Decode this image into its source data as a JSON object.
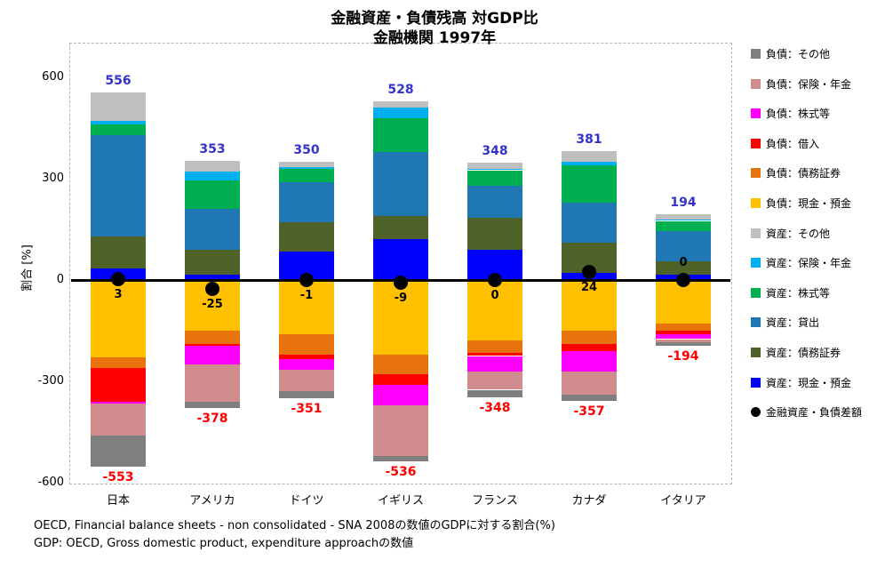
{
  "title": {
    "line1": "金融資産・負債残高 対GDP比",
    "line2": "金融機関 1997年"
  },
  "footer": {
    "line1": "OECD, Financial balance sheets -  non consolidated - SNA 2008の数値のGDPに対する割合(%)",
    "line2": "GDP: OECD, Gross domestic product, expenditure approachの数値"
  },
  "chart_data": {
    "type": "bar",
    "stacked": true,
    "title": "金融資産・負債残高 対GDP比 金融機関 1997年",
    "ylabel": "割合 [%]",
    "ylim": [
      -600,
      600
    ],
    "yticks": [
      600,
      300,
      0,
      -300,
      -600
    ],
    "grid": false,
    "legend_position": "right",
    "categories": [
      "日本",
      "アメリカ",
      "ドイツ",
      "イギリス",
      "フランス",
      "カナダ",
      "イタリア"
    ],
    "asset_total_labels": [
      556,
      353,
      350,
      528,
      348,
      381,
      194
    ],
    "liability_total_labels": [
      -553,
      -378,
      -351,
      -536,
      -348,
      -357,
      -194
    ],
    "net_values": [
      3,
      -25,
      -1,
      -9,
      0,
      24,
      0
    ],
    "net_label_side": [
      "below",
      "below",
      "below",
      "below",
      "below",
      "below",
      "above"
    ],
    "asset_series": [
      {
        "name": "資産：現金・預金",
        "color": "#0000FF",
        "values": [
          35,
          15,
          85,
          120,
          90,
          20,
          15
        ]
      },
      {
        "name": "資産：債務証券",
        "color": "#4F6228",
        "values": [
          95,
          75,
          85,
          70,
          95,
          90,
          40
        ]
      },
      {
        "name": "資産：貸出",
        "color": "#1F78B4",
        "values": [
          300,
          120,
          120,
          190,
          95,
          120,
          90
        ]
      },
      {
        "name": "資産：株式等",
        "color": "#00B050",
        "values": [
          30,
          85,
          40,
          100,
          45,
          110,
          30
        ]
      },
      {
        "name": "資産：保険・年金",
        "color": "#00B0F0",
        "values": [
          10,
          25,
          5,
          30,
          5,
          10,
          5
        ]
      },
      {
        "name": "資産：その他",
        "color": "#BFBFBF",
        "values": [
          86,
          33,
          15,
          18,
          18,
          31,
          14
        ]
      }
    ],
    "liability_series": [
      {
        "name": "負債：現金・預金",
        "color": "#FFC000",
        "values": [
          230,
          150,
          160,
          220,
          180,
          150,
          130
        ]
      },
      {
        "name": "負債：債務証券",
        "color": "#E8720C",
        "values": [
          30,
          40,
          60,
          60,
          35,
          40,
          20
        ]
      },
      {
        "name": "負債：借入",
        "color": "#FF0000",
        "values": [
          100,
          5,
          15,
          30,
          10,
          20,
          10
        ]
      },
      {
        "name": "負債：株式等",
        "color": "#FF00FF",
        "values": [
          5,
          55,
          30,
          60,
          45,
          60,
          15
        ]
      },
      {
        "name": "負債：保険・年金",
        "color": "#D08C8C",
        "values": [
          95,
          110,
          65,
          150,
          55,
          70,
          10
        ]
      },
      {
        "name": "負債：その他",
        "color": "#7F7F7F",
        "values": [
          93,
          18,
          21,
          16,
          23,
          17,
          9
        ]
      }
    ],
    "legend": [
      {
        "label": "負債：その他",
        "color": "#7F7F7F",
        "marker": "square"
      },
      {
        "label": "負債：保険・年金",
        "color": "#D08C8C",
        "marker": "square"
      },
      {
        "label": "負債：株式等",
        "color": "#FF00FF",
        "marker": "square"
      },
      {
        "label": "負債：借入",
        "color": "#FF0000",
        "marker": "square"
      },
      {
        "label": "負債：債務証券",
        "color": "#E8720C",
        "marker": "square"
      },
      {
        "label": "負債：現金・預金",
        "color": "#FFC000",
        "marker": "square"
      },
      {
        "label": "資産：その他",
        "color": "#BFBFBF",
        "marker": "square"
      },
      {
        "label": "資産：保険・年金",
        "color": "#00B0F0",
        "marker": "square"
      },
      {
        "label": "資産：株式等",
        "color": "#00B050",
        "marker": "square"
      },
      {
        "label": "資産：貸出",
        "color": "#1F78B4",
        "marker": "square"
      },
      {
        "label": "資産：債務証券",
        "color": "#4F6228",
        "marker": "square"
      },
      {
        "label": "資産：現金・預金",
        "color": "#0000FF",
        "marker": "square"
      },
      {
        "label": "金融資産・負債差額",
        "color": "#000000",
        "marker": "dot"
      }
    ],
    "colors": {
      "total_positive": "#3333CC",
      "total_negative": "#FF0000",
      "net_dot": "#000000",
      "zero_line": "#000000"
    }
  }
}
